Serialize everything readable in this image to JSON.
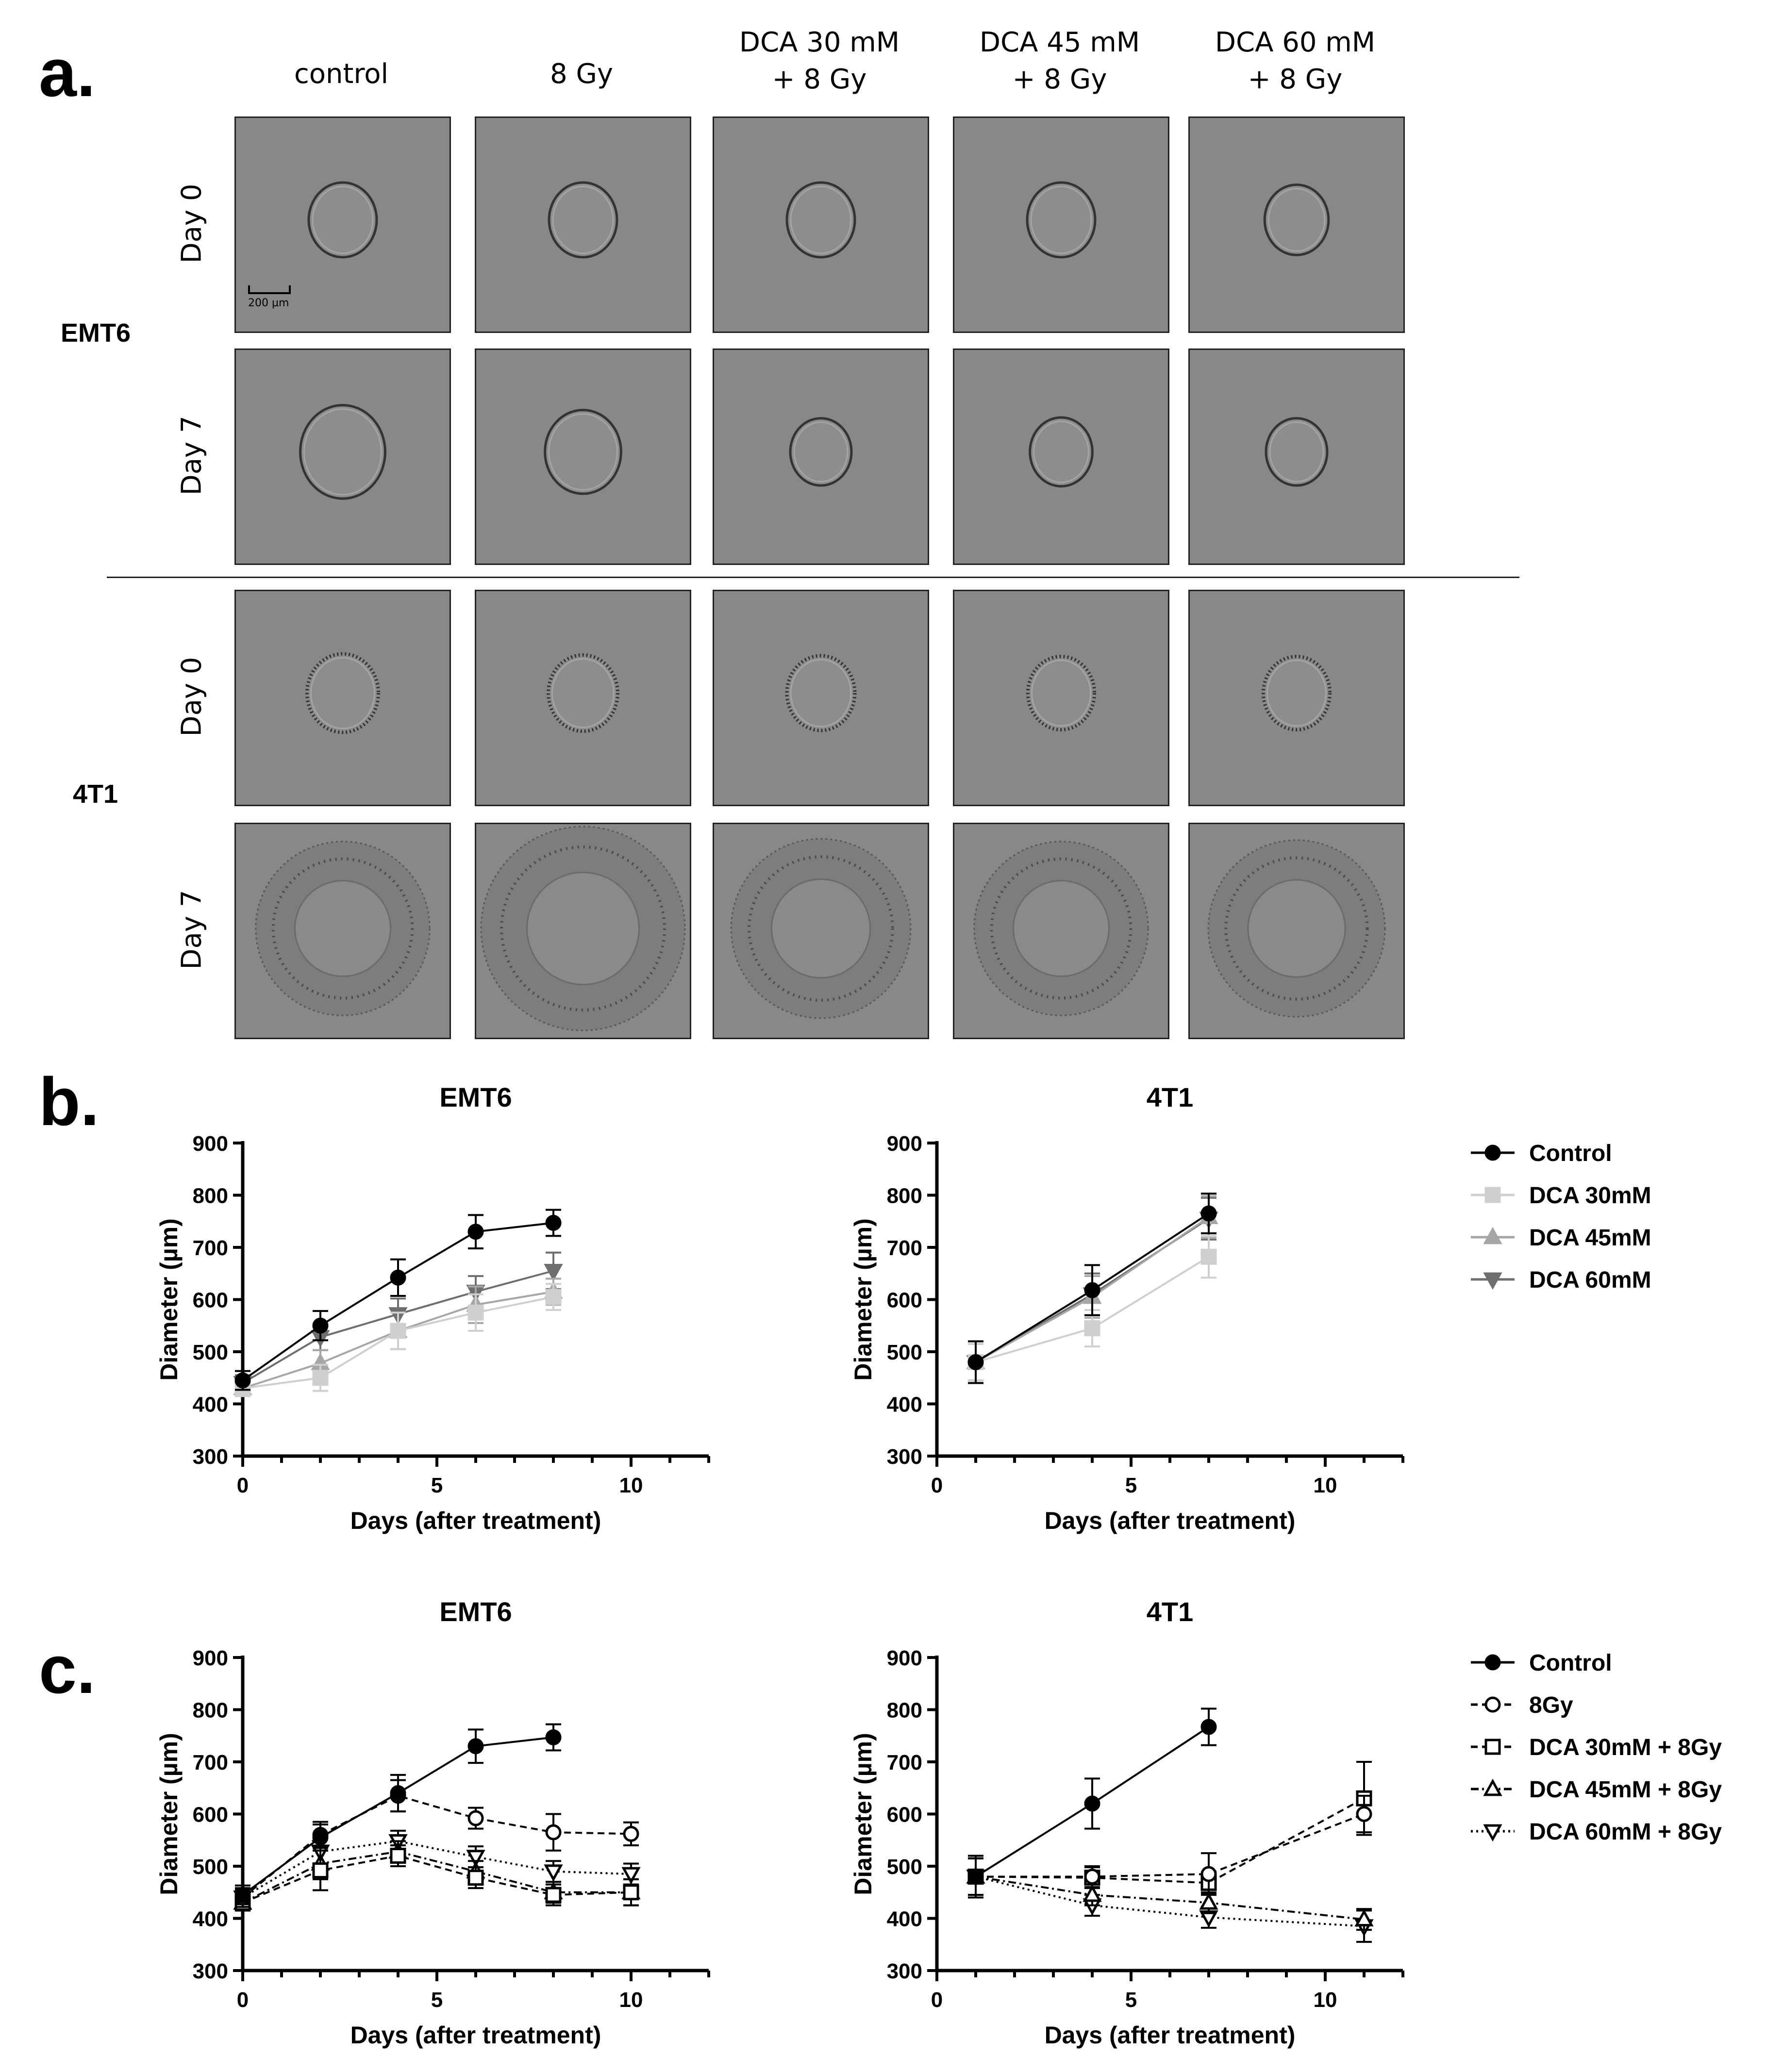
{
  "panel_labels": {
    "a": "a.",
    "b": "b.",
    "c": "c."
  },
  "micrograph_grid": {
    "columns": [
      "control",
      "8 Gy",
      "DCA 30 mM\n+ 8 Gy",
      "DCA 45 mM\n+ 8 Gy",
      "DCA 60 mM\n+ 8 Gy"
    ],
    "cell_lines": [
      "EMT6",
      "4T1"
    ],
    "days": [
      "Day 0",
      "Day 7"
    ],
    "scale_bar": "200 µm",
    "spheroid_scale": {
      "EMT6": {
        "Day 0": [
          0.5,
          0.5,
          0.5,
          0.5,
          0.44
        ],
        "Day 7": [
          0.75,
          0.62,
          0.4,
          0.42,
          0.4
        ]
      },
      "4T1": {
        "Day 0": [
          0.55,
          0.52,
          0.5,
          0.48,
          0.48
        ],
        "Day 7": [
          0.78,
          1.0,
          0.82,
          0.78,
          0.8
        ]
      }
    }
  },
  "chart_data": [
    {
      "type": "line",
      "panel": "b",
      "title": "EMT6",
      "xlabel": "Days (after treatment)",
      "ylabel": "Diameter (µm)",
      "xlim": [
        0,
        12
      ],
      "ylim": [
        300,
        900
      ],
      "xticks": [
        0,
        5,
        10
      ],
      "yticks": [
        300,
        400,
        500,
        600,
        700,
        800,
        900
      ],
      "series": [
        {
          "name": "Control",
          "x": [
            0,
            2,
            4,
            6,
            8
          ],
          "values": [
            445,
            550,
            642,
            730,
            747
          ],
          "err": [
            18,
            28,
            35,
            32,
            25
          ],
          "color": "#000000",
          "marker": "circle",
          "dash": "solid"
        },
        {
          "name": "DCA 30mM",
          "x": [
            0,
            2,
            4,
            6,
            8
          ],
          "values": [
            430,
            450,
            540,
            575,
            605
          ],
          "err": [
            15,
            25,
            35,
            35,
            25
          ],
          "color": "#cfcfcf",
          "marker": "square",
          "dash": "solid"
        },
        {
          "name": "DCA 45mM",
          "x": [
            0,
            2,
            4,
            6,
            8
          ],
          "values": [
            430,
            478,
            540,
            590,
            615
          ],
          "err": [
            15,
            25,
            35,
            35,
            25
          ],
          "color": "#a6a6a6",
          "marker": "triangle",
          "dash": "solid"
        },
        {
          "name": "DCA 60mM",
          "x": [
            0,
            2,
            4,
            6,
            8
          ],
          "values": [
            440,
            528,
            572,
            615,
            655
          ],
          "err": [
            15,
            25,
            30,
            30,
            35
          ],
          "color": "#6e6e6e",
          "marker": "triangle-down",
          "dash": "solid"
        }
      ]
    },
    {
      "type": "line",
      "panel": "b",
      "title": "4T1",
      "xlabel": "Days (after treatment)",
      "ylabel": "Diameter (µm)",
      "xlim": [
        0,
        12
      ],
      "ylim": [
        300,
        900
      ],
      "xticks": [
        0,
        5,
        10
      ],
      "yticks": [
        300,
        400,
        500,
        600,
        700,
        800,
        900
      ],
      "legend": [
        "Control",
        "DCA 30mM",
        "DCA 45mM",
        "DCA 60mM"
      ],
      "series": [
        {
          "name": "Control",
          "x": [
            1,
            4,
            7
          ],
          "values": [
            480,
            618,
            765
          ],
          "err": [
            40,
            48,
            38
          ],
          "color": "#000000",
          "marker": "circle",
          "dash": "solid"
        },
        {
          "name": "DCA 30mM",
          "x": [
            1,
            4,
            7
          ],
          "values": [
            480,
            545,
            682
          ],
          "err": [
            35,
            35,
            40
          ],
          "color": "#cfcfcf",
          "marker": "square",
          "dash": "solid"
        },
        {
          "name": "DCA 45mM",
          "x": [
            1,
            4,
            7
          ],
          "values": [
            480,
            605,
            758
          ],
          "err": [
            35,
            40,
            40
          ],
          "color": "#a6a6a6",
          "marker": "triangle",
          "dash": "solid"
        },
        {
          "name": "DCA 60mM",
          "x": [
            1,
            4,
            7
          ],
          "values": [
            480,
            610,
            755
          ],
          "err": [
            35,
            40,
            40
          ],
          "color": "#6e6e6e",
          "marker": "triangle-down",
          "dash": "solid"
        }
      ]
    },
    {
      "type": "line",
      "panel": "c",
      "title": "EMT6",
      "xlabel": "Days (after treatment)",
      "ylabel": "Diameter (µm)",
      "xlim": [
        0,
        12
      ],
      "ylim": [
        300,
        900
      ],
      "xticks": [
        0,
        5,
        10
      ],
      "yticks": [
        300,
        400,
        500,
        600,
        700,
        800,
        900
      ],
      "series": [
        {
          "name": "Control",
          "x": [
            0,
            2,
            4,
            6,
            8
          ],
          "values": [
            445,
            555,
            640,
            730,
            747
          ],
          "err": [
            18,
            25,
            35,
            32,
            25
          ],
          "color": "#000000",
          "marker": "circle",
          "filled": true,
          "dash": "solid"
        },
        {
          "name": "8Gy",
          "x": [
            0,
            2,
            4,
            6,
            8,
            10
          ],
          "values": [
            440,
            560,
            635,
            592,
            565,
            562
          ],
          "err": [
            18,
            25,
            30,
            20,
            35,
            22
          ],
          "color": "#000000",
          "marker": "circle",
          "filled": false,
          "dash": "dashed"
        },
        {
          "name": "DCA 30mM + 8Gy",
          "x": [
            0,
            2,
            4,
            6,
            8,
            10
          ],
          "values": [
            430,
            492,
            520,
            478,
            445,
            450
          ],
          "err": [
            15,
            38,
            20,
            20,
            20,
            25
          ],
          "color": "#000000",
          "marker": "square",
          "filled": false,
          "dash": "dashed"
        },
        {
          "name": "DCA 45mM + 8Gy",
          "x": [
            0,
            2,
            4,
            6,
            8,
            10
          ],
          "values": [
            430,
            505,
            528,
            490,
            450,
            450
          ],
          "err": [
            15,
            30,
            20,
            20,
            20,
            25
          ],
          "color": "#000000",
          "marker": "triangle",
          "filled": false,
          "dash": "dashdot"
        },
        {
          "name": "DCA 60mM + 8Gy",
          "x": [
            0,
            2,
            4,
            6,
            8,
            10
          ],
          "values": [
            440,
            528,
            548,
            518,
            490,
            485
          ],
          "err": [
            15,
            30,
            20,
            20,
            20,
            20
          ],
          "color": "#000000",
          "marker": "triangle-down",
          "filled": false,
          "dash": "dotted"
        }
      ]
    },
    {
      "type": "line",
      "panel": "c",
      "title": "4T1",
      "xlabel": "Days (after treatment)",
      "ylabel": "Diameter (µm)",
      "xlim": [
        0,
        12
      ],
      "ylim": [
        300,
        900
      ],
      "xticks": [
        0,
        5,
        10
      ],
      "yticks": [
        300,
        400,
        500,
        600,
        700,
        800,
        900
      ],
      "legend": [
        "Control",
        "8Gy",
        "DCA 30mM + 8Gy",
        "DCA 45mM + 8Gy",
        "DCA 60mM + 8Gy"
      ],
      "series": [
        {
          "name": "Control",
          "x": [
            1,
            4,
            7
          ],
          "values": [
            480,
            620,
            767
          ],
          "err": [
            40,
            48,
            35
          ],
          "color": "#000000",
          "marker": "circle",
          "filled": true,
          "dash": "solid"
        },
        {
          "name": "8Gy",
          "x": [
            1,
            4,
            7,
            11
          ],
          "values": [
            480,
            480,
            485,
            600
          ],
          "err": [
            35,
            20,
            40,
            35
          ],
          "color": "#000000",
          "marker": "circle",
          "filled": false,
          "dash": "dashed"
        },
        {
          "name": "DCA 30mM + 8Gy",
          "x": [
            1,
            4,
            7,
            11
          ],
          "values": [
            480,
            478,
            468,
            630
          ],
          "err": [
            35,
            20,
            20,
            70
          ],
          "color": "#000000",
          "marker": "square",
          "filled": false,
          "dash": "dashed"
        },
        {
          "name": "DCA 45mM + 8Gy",
          "x": [
            1,
            4,
            7,
            11
          ],
          "values": [
            480,
            445,
            430,
            398
          ],
          "err": [
            35,
            20,
            20,
            20
          ],
          "color": "#000000",
          "marker": "triangle",
          "filled": false,
          "dash": "dashdot"
        },
        {
          "name": "DCA 60mM + 8Gy",
          "x": [
            1,
            4,
            7,
            11
          ],
          "values": [
            480,
            425,
            402,
            385
          ],
          "err": [
            35,
            20,
            20,
            30
          ],
          "color": "#000000",
          "marker": "triangle-down",
          "filled": false,
          "dash": "dotted"
        }
      ]
    }
  ]
}
